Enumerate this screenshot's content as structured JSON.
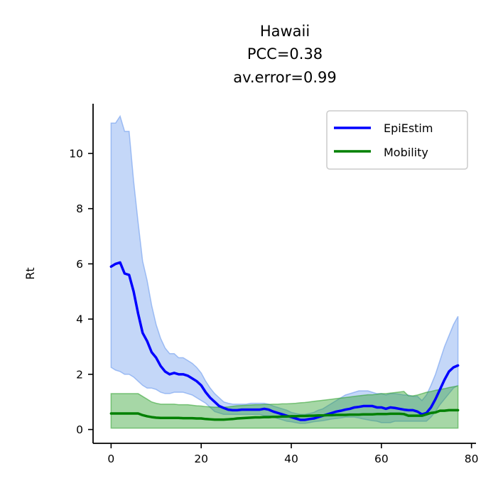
{
  "chart_data": {
    "type": "line",
    "title_lines": [
      "Hawaii",
      "PCC=0.38",
      "av.error=0.99"
    ],
    "xlabel": "",
    "ylabel": "Rt",
    "xlim": [
      -4,
      81
    ],
    "ylim": [
      -0.5,
      11.8
    ],
    "xticks": [
      0,
      20,
      40,
      60,
      80
    ],
    "yticks": [
      0,
      2,
      4,
      6,
      8,
      10
    ],
    "grid": false,
    "legend_position": "top-right",
    "series": [
      {
        "name": "EpiEstim",
        "color": "#0000ff",
        "band_color": "#6495ed",
        "x": [
          0,
          1,
          2,
          3,
          4,
          5,
          6,
          7,
          8,
          9,
          10,
          11,
          12,
          13,
          14,
          15,
          16,
          17,
          18,
          19,
          20,
          21,
          22,
          23,
          24,
          25,
          26,
          27,
          28,
          29,
          30,
          31,
          32,
          33,
          34,
          35,
          36,
          37,
          38,
          39,
          40,
          41,
          42,
          43,
          44,
          45,
          46,
          47,
          48,
          49,
          50,
          51,
          52,
          53,
          54,
          55,
          56,
          57,
          58,
          59,
          60,
          61,
          62,
          63,
          64,
          65,
          66,
          67,
          68,
          69,
          70,
          71,
          72,
          73,
          74,
          75,
          76,
          77
        ],
        "y": [
          5.9,
          6.0,
          6.05,
          5.65,
          5.6,
          5.0,
          4.2,
          3.5,
          3.2,
          2.8,
          2.6,
          2.3,
          2.1,
          2.0,
          2.05,
          2.0,
          2.0,
          1.95,
          1.85,
          1.75,
          1.6,
          1.35,
          1.15,
          1.0,
          0.85,
          0.78,
          0.72,
          0.7,
          0.7,
          0.72,
          0.72,
          0.72,
          0.72,
          0.72,
          0.75,
          0.72,
          0.65,
          0.6,
          0.55,
          0.5,
          0.45,
          0.4,
          0.35,
          0.35,
          0.38,
          0.4,
          0.45,
          0.5,
          0.55,
          0.6,
          0.65,
          0.68,
          0.72,
          0.75,
          0.8,
          0.82,
          0.85,
          0.85,
          0.85,
          0.8,
          0.8,
          0.75,
          0.8,
          0.78,
          0.75,
          0.72,
          0.7,
          0.7,
          0.65,
          0.55,
          0.6,
          0.8,
          1.1,
          1.45,
          1.8,
          2.1,
          2.25,
          2.32
        ],
        "lower": [
          2.25,
          2.15,
          2.1,
          2.0,
          2.0,
          1.9,
          1.75,
          1.6,
          1.5,
          1.5,
          1.45,
          1.35,
          1.3,
          1.3,
          1.35,
          1.35,
          1.35,
          1.3,
          1.25,
          1.15,
          1.05,
          0.95,
          0.8,
          0.65,
          0.6,
          0.55,
          0.55,
          0.55,
          0.55,
          0.55,
          0.55,
          0.55,
          0.55,
          0.55,
          0.5,
          0.5,
          0.45,
          0.4,
          0.35,
          0.3,
          0.28,
          0.25,
          0.22,
          0.22,
          0.25,
          0.28,
          0.3,
          0.32,
          0.35,
          0.38,
          0.4,
          0.42,
          0.45,
          0.45,
          0.45,
          0.42,
          0.38,
          0.35,
          0.32,
          0.3,
          0.25,
          0.25,
          0.25,
          0.3,
          0.3,
          0.3,
          0.3,
          0.3,
          0.3,
          0.3,
          0.3,
          0.45,
          0.65,
          0.9,
          1.1,
          1.3,
          1.5,
          1.6
        ],
        "upper": [
          11.1,
          11.1,
          11.35,
          10.8,
          10.8,
          9.0,
          7.5,
          6.1,
          5.4,
          4.5,
          3.8,
          3.3,
          2.95,
          2.75,
          2.75,
          2.6,
          2.6,
          2.5,
          2.4,
          2.25,
          2.05,
          1.75,
          1.5,
          1.3,
          1.15,
          1.0,
          0.95,
          0.92,
          0.92,
          0.92,
          0.92,
          0.95,
          0.95,
          0.95,
          0.95,
          0.92,
          0.85,
          0.8,
          0.75,
          0.7,
          0.62,
          0.58,
          0.55,
          0.55,
          0.58,
          0.62,
          0.7,
          0.75,
          0.85,
          0.95,
          1.05,
          1.15,
          1.25,
          1.3,
          1.35,
          1.4,
          1.4,
          1.4,
          1.35,
          1.3,
          1.3,
          1.25,
          1.3,
          1.3,
          1.28,
          1.25,
          1.25,
          1.2,
          1.2,
          1.05,
          1.25,
          1.6,
          2.0,
          2.5,
          3.0,
          3.4,
          3.8,
          4.1
        ]
      },
      {
        "name": "Mobility",
        "color": "#008000",
        "band_color": "#2ca02c",
        "x": [
          0,
          1,
          2,
          3,
          4,
          5,
          6,
          7,
          8,
          9,
          10,
          11,
          12,
          13,
          14,
          15,
          16,
          17,
          18,
          19,
          20,
          21,
          22,
          23,
          24,
          25,
          26,
          27,
          28,
          29,
          30,
          31,
          32,
          33,
          34,
          35,
          36,
          37,
          38,
          39,
          40,
          41,
          42,
          43,
          44,
          45,
          46,
          47,
          48,
          49,
          50,
          51,
          52,
          53,
          54,
          55,
          56,
          57,
          58,
          59,
          60,
          61,
          62,
          63,
          64,
          65,
          66,
          67,
          68,
          69,
          70,
          71,
          72,
          73,
          74,
          75,
          76,
          77
        ],
        "y": [
          0.58,
          0.58,
          0.58,
          0.58,
          0.58,
          0.58,
          0.58,
          0.52,
          0.48,
          0.45,
          0.43,
          0.42,
          0.42,
          0.42,
          0.42,
          0.42,
          0.41,
          0.41,
          0.41,
          0.4,
          0.4,
          0.38,
          0.37,
          0.36,
          0.36,
          0.36,
          0.37,
          0.38,
          0.4,
          0.41,
          0.42,
          0.43,
          0.44,
          0.44,
          0.45,
          0.45,
          0.46,
          0.46,
          0.47,
          0.47,
          0.48,
          0.48,
          0.49,
          0.49,
          0.5,
          0.5,
          0.51,
          0.51,
          0.52,
          0.52,
          0.53,
          0.53,
          0.53,
          0.54,
          0.54,
          0.54,
          0.55,
          0.55,
          0.55,
          0.56,
          0.56,
          0.56,
          0.57,
          0.57,
          0.57,
          0.56,
          0.5,
          0.5,
          0.5,
          0.5,
          0.55,
          0.6,
          0.62,
          0.68,
          0.68,
          0.7,
          0.7,
          0.7
        ],
        "lower": [
          0.05,
          0.05,
          0.05,
          0.05,
          0.05,
          0.05,
          0.05,
          0.05,
          0.05,
          0.05,
          0.05,
          0.05,
          0.05,
          0.05,
          0.05,
          0.05,
          0.05,
          0.05,
          0.05,
          0.05,
          0.05,
          0.05,
          0.05,
          0.05,
          0.05,
          0.05,
          0.05,
          0.05,
          0.05,
          0.05,
          0.05,
          0.05,
          0.05,
          0.05,
          0.05,
          0.05,
          0.05,
          0.05,
          0.05,
          0.05,
          0.05,
          0.05,
          0.05,
          0.05,
          0.05,
          0.05,
          0.05,
          0.05,
          0.05,
          0.05,
          0.05,
          0.05,
          0.05,
          0.05,
          0.05,
          0.05,
          0.05,
          0.05,
          0.05,
          0.05,
          0.05,
          0.05,
          0.05,
          0.05,
          0.05,
          0.05,
          0.05,
          0.05,
          0.05,
          0.05,
          0.05,
          0.05,
          0.05,
          0.05,
          0.05,
          0.05,
          0.05,
          0.05
        ],
        "upper": [
          1.3,
          1.3,
          1.3,
          1.3,
          1.3,
          1.3,
          1.3,
          1.2,
          1.1,
          1.0,
          0.95,
          0.92,
          0.92,
          0.92,
          0.92,
          0.9,
          0.9,
          0.9,
          0.88,
          0.86,
          0.85,
          0.83,
          0.82,
          0.81,
          0.81,
          0.81,
          0.82,
          0.84,
          0.86,
          0.87,
          0.88,
          0.89,
          0.9,
          0.9,
          0.91,
          0.91,
          0.92,
          0.92,
          0.93,
          0.93,
          0.94,
          0.95,
          0.97,
          0.98,
          1.0,
          1.02,
          1.04,
          1.06,
          1.08,
          1.1,
          1.12,
          1.14,
          1.16,
          1.18,
          1.2,
          1.22,
          1.24,
          1.26,
          1.26,
          1.28,
          1.3,
          1.3,
          1.32,
          1.34,
          1.36,
          1.38,
          1.22,
          1.22,
          1.25,
          1.3,
          1.35,
          1.38,
          1.42,
          1.45,
          1.48,
          1.52,
          1.55,
          1.58
        ]
      }
    ]
  }
}
